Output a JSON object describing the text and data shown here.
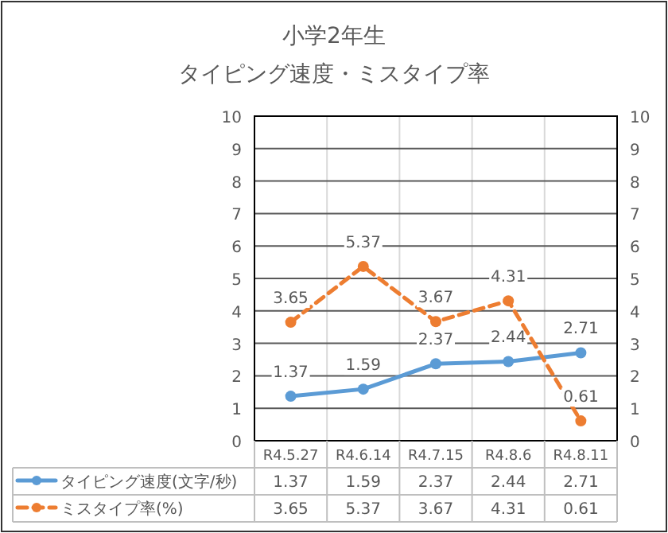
{
  "chart_data": {
    "type": "line",
    "title": "小学2年生",
    "subtitle": "タイピング速度・ミスタイプ率",
    "categories": [
      "R4.5.27",
      "R4.6.14",
      "R4.7.15",
      "R4.8.6",
      "R4.8.11"
    ],
    "series": [
      {
        "name": "タイピング速度(文字/秒)",
        "color": "#5b9bd5",
        "values": [
          1.37,
          1.59,
          2.37,
          2.44,
          2.71
        ],
        "value_labels": [
          "1.37",
          "1.59",
          "2.37",
          "2.44",
          "2.71"
        ],
        "line_style": "solid"
      },
      {
        "name": "ミスタイプ率(%)",
        "color": "#ed7d31",
        "values": [
          3.65,
          5.37,
          3.67,
          4.31,
          0.61
        ],
        "value_labels": [
          "3.65",
          "5.37",
          "3.67",
          "4.31",
          "0.61"
        ],
        "line_style": "dashed"
      }
    ],
    "ylim": [
      0,
      10
    ],
    "yticks": [
      0,
      1,
      2,
      3,
      4,
      5,
      6,
      7,
      8,
      9,
      10
    ],
    "y2lim": [
      0,
      10
    ],
    "y2ticks": [
      0,
      1,
      2,
      3,
      4,
      5,
      6,
      7,
      8,
      9,
      10
    ],
    "annotations": [
      "1.37",
      "1.59",
      "2.37",
      "2.44",
      "2.71",
      "3.65",
      "5.37",
      "3.67",
      "4.31",
      "0.61"
    ],
    "grid": true,
    "marker": "circle",
    "legend": "bottom"
  }
}
